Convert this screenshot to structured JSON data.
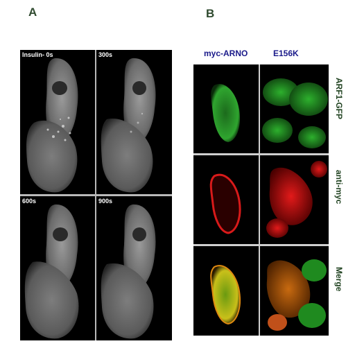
{
  "panels": {
    "a": {
      "letter": "A",
      "frames": [
        {
          "label": "Insulin- 0s"
        },
        {
          "label": "300s"
        },
        {
          "label": "600s"
        },
        {
          "label": "900s"
        }
      ]
    },
    "b": {
      "letter": "B",
      "columns": [
        "myc-ARNO",
        "E156K"
      ],
      "rows": [
        "ARF1-GFP",
        "anti-myc",
        "Merge"
      ]
    }
  }
}
